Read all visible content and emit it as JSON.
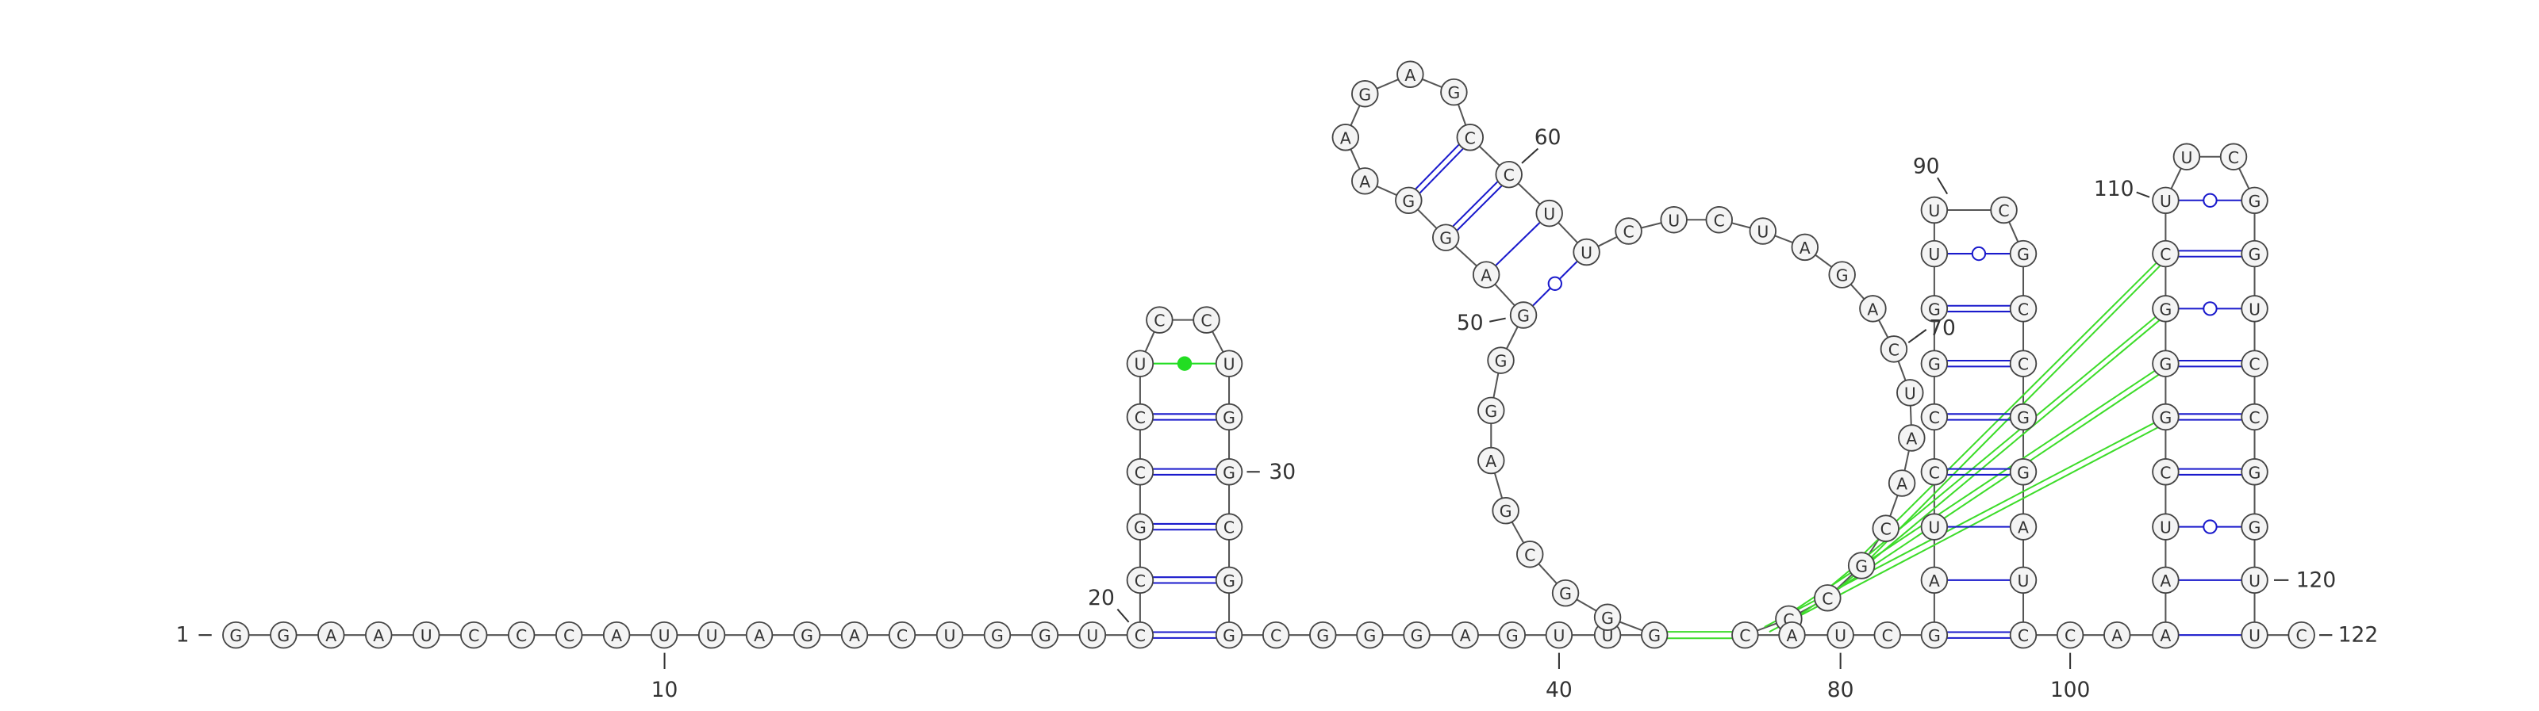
{
  "sequence": [
    "G",
    "G",
    "A",
    "A",
    "U",
    "C",
    "C",
    "C",
    "A",
    "U",
    "U",
    "A",
    "G",
    "A",
    "C",
    "U",
    "G",
    "G",
    "U",
    "C",
    "C",
    "G",
    "C",
    "C",
    "U",
    "C",
    "C",
    "U",
    "G",
    "G",
    "C",
    "G",
    "G",
    "C",
    "G",
    "G",
    "G",
    "A",
    "G",
    "U",
    "U",
    "G",
    "G",
    "G",
    "C",
    "G",
    "A",
    "G",
    "G",
    "G",
    "A",
    "G",
    "G",
    "A",
    "A",
    "G",
    "A",
    "G",
    "C",
    "C",
    "U",
    "U",
    "C",
    "U",
    "C",
    "U",
    "A",
    "G",
    "A",
    "C",
    "U",
    "A",
    "A",
    "C",
    "G",
    "C",
    "C",
    "C",
    "A",
    "U",
    "C",
    "G",
    "A",
    "U",
    "C",
    "C",
    "G",
    "G",
    "U",
    "U",
    "C",
    "G",
    "C",
    "C",
    "G",
    "G",
    "A",
    "U",
    "C",
    "C",
    "A",
    "A",
    "A",
    "U",
    "C",
    "G",
    "G",
    "G",
    "C",
    "U",
    "U",
    "C",
    "G",
    "G",
    "U",
    "C",
    "C",
    "G",
    "G",
    "U",
    "U",
    "C"
  ],
  "position_labels": [
    1,
    10,
    20,
    30,
    40,
    50,
    60,
    70,
    80,
    90,
    100,
    110,
    120,
    122
  ]
}
